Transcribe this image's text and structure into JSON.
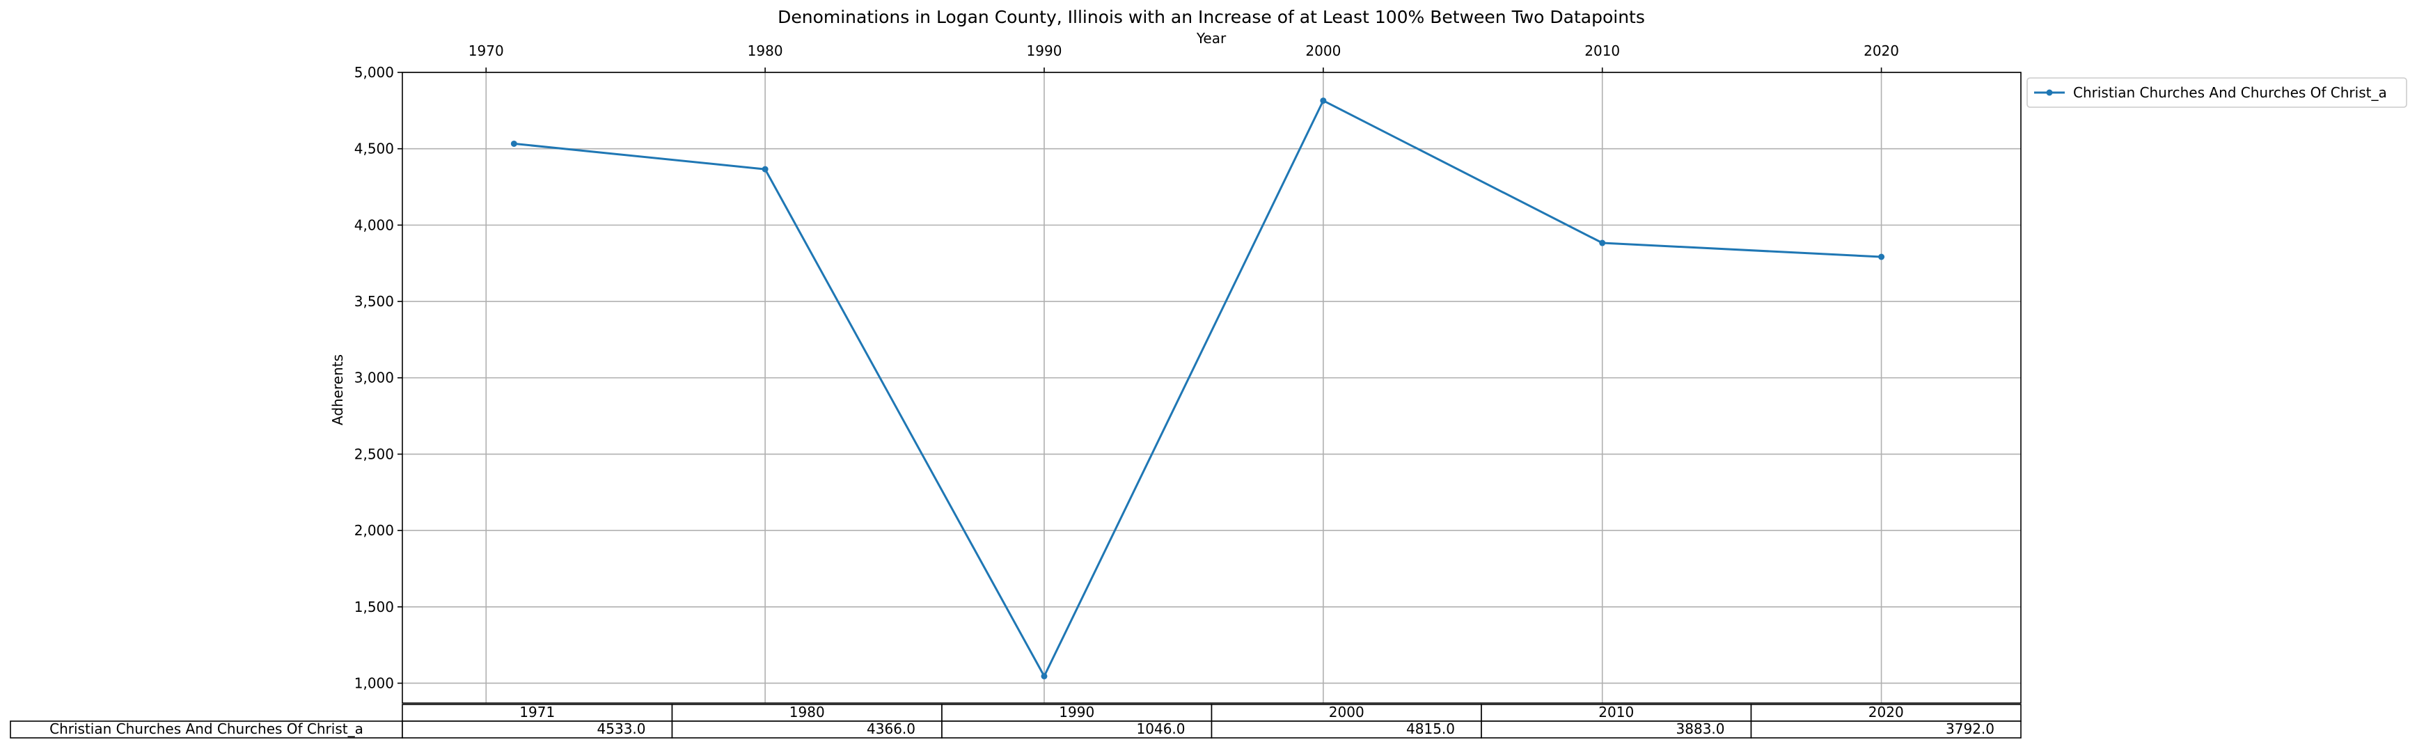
{
  "chart_data": {
    "type": "line",
    "title": "Denominations in Logan County, Illinois with an Increase of at Least 100% Between Two Datapoints",
    "xlabel": "Year",
    "ylabel": "Adherents",
    "x": [
      1971,
      1980,
      1990,
      2000,
      2010,
      2020
    ],
    "xlim": [
      1967,
      2025
    ],
    "ylim": [
      870,
      5000
    ],
    "x_ticks": [
      1970,
      1980,
      1990,
      2000,
      2010,
      2020
    ],
    "x_tick_labels": [
      "1970",
      "1980",
      "1990",
      "2000",
      "2010",
      "2020"
    ],
    "x_axis_position": "top",
    "y_ticks": [
      1000,
      1500,
      2000,
      2500,
      3000,
      3500,
      4000,
      4500,
      5000
    ],
    "y_tick_labels": [
      "1,000",
      "1,500",
      "2,000",
      "2,500",
      "3,000",
      "3,500",
      "4,000",
      "4,500",
      "5,000"
    ],
    "grid": true,
    "legend_position": "outside-top-right",
    "series": [
      {
        "name": "Christian Churches And Churches Of Christ_a",
        "color": "#1f77b4",
        "marker": "dot",
        "values": [
          4533,
          4366,
          1046,
          4815,
          3883,
          3792
        ]
      }
    ],
    "table": {
      "columns": [
        "1971",
        "1980",
        "1990",
        "2000",
        "2010",
        "2020"
      ],
      "rows": [
        {
          "label": "Christian Churches And Churches Of Christ_a",
          "cells": [
            "4533.0",
            "4366.0",
            "1046.0",
            "4815.0",
            "3883.0",
            "3792.0"
          ]
        }
      ]
    }
  }
}
